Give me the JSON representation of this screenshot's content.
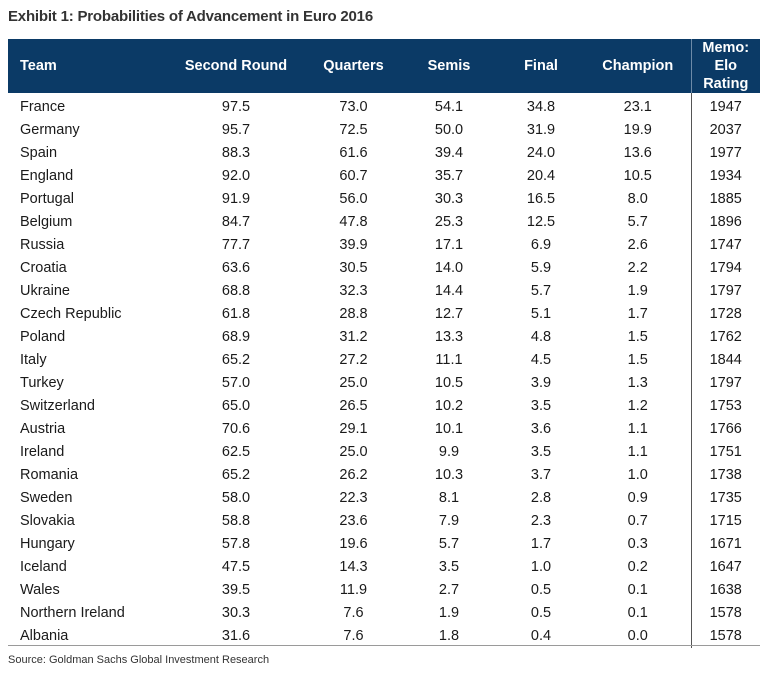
{
  "title": "Exhibit 1: Probabilities of Advancement in Euro 2016",
  "headers": {
    "team": "Team",
    "second_round": "Second Round",
    "quarters": "Quarters",
    "semis": "Semis",
    "final": "Final",
    "champion": "Champion",
    "memo_line1": "Memo: Elo",
    "memo_line2": "Rating"
  },
  "rows": [
    {
      "team": "France",
      "second_round": "97.5",
      "quarters": "73.0",
      "semis": "54.1",
      "final": "34.8",
      "champion": "23.1",
      "elo": "1947"
    },
    {
      "team": "Germany",
      "second_round": "95.7",
      "quarters": "72.5",
      "semis": "50.0",
      "final": "31.9",
      "champion": "19.9",
      "elo": "2037"
    },
    {
      "team": "Spain",
      "second_round": "88.3",
      "quarters": "61.6",
      "semis": "39.4",
      "final": "24.0",
      "champion": "13.6",
      "elo": "1977"
    },
    {
      "team": "England",
      "second_round": "92.0",
      "quarters": "60.7",
      "semis": "35.7",
      "final": "20.4",
      "champion": "10.5",
      "elo": "1934"
    },
    {
      "team": "Portugal",
      "second_round": "91.9",
      "quarters": "56.0",
      "semis": "30.3",
      "final": "16.5",
      "champion": "8.0",
      "elo": "1885"
    },
    {
      "team": "Belgium",
      "second_round": "84.7",
      "quarters": "47.8",
      "semis": "25.3",
      "final": "12.5",
      "champion": "5.7",
      "elo": "1896"
    },
    {
      "team": "Russia",
      "second_round": "77.7",
      "quarters": "39.9",
      "semis": "17.1",
      "final": "6.9",
      "champion": "2.6",
      "elo": "1747"
    },
    {
      "team": "Croatia",
      "second_round": "63.6",
      "quarters": "30.5",
      "semis": "14.0",
      "final": "5.9",
      "champion": "2.2",
      "elo": "1794"
    },
    {
      "team": "Ukraine",
      "second_round": "68.8",
      "quarters": "32.3",
      "semis": "14.4",
      "final": "5.7",
      "champion": "1.9",
      "elo": "1797"
    },
    {
      "team": "Czech Republic",
      "second_round": "61.8",
      "quarters": "28.8",
      "semis": "12.7",
      "final": "5.1",
      "champion": "1.7",
      "elo": "1728"
    },
    {
      "team": "Poland",
      "second_round": "68.9",
      "quarters": "31.2",
      "semis": "13.3",
      "final": "4.8",
      "champion": "1.5",
      "elo": "1762"
    },
    {
      "team": "Italy",
      "second_round": "65.2",
      "quarters": "27.2",
      "semis": "11.1",
      "final": "4.5",
      "champion": "1.5",
      "elo": "1844"
    },
    {
      "team": "Turkey",
      "second_round": "57.0",
      "quarters": "25.0",
      "semis": "10.5",
      "final": "3.9",
      "champion": "1.3",
      "elo": "1797"
    },
    {
      "team": "Switzerland",
      "second_round": "65.0",
      "quarters": "26.5",
      "semis": "10.2",
      "final": "3.5",
      "champion": "1.2",
      "elo": "1753"
    },
    {
      "team": "Austria",
      "second_round": "70.6",
      "quarters": "29.1",
      "semis": "10.1",
      "final": "3.6",
      "champion": "1.1",
      "elo": "1766"
    },
    {
      "team": "Ireland",
      "second_round": "62.5",
      "quarters": "25.0",
      "semis": "9.9",
      "final": "3.5",
      "champion": "1.1",
      "elo": "1751"
    },
    {
      "team": "Romania",
      "second_round": "65.2",
      "quarters": "26.2",
      "semis": "10.3",
      "final": "3.7",
      "champion": "1.0",
      "elo": "1738"
    },
    {
      "team": "Sweden",
      "second_round": "58.0",
      "quarters": "22.3",
      "semis": "8.1",
      "final": "2.8",
      "champion": "0.9",
      "elo": "1735"
    },
    {
      "team": "Slovakia",
      "second_round": "58.8",
      "quarters": "23.6",
      "semis": "7.9",
      "final": "2.3",
      "champion": "0.7",
      "elo": "1715"
    },
    {
      "team": "Hungary",
      "second_round": "57.8",
      "quarters": "19.6",
      "semis": "5.7",
      "final": "1.7",
      "champion": "0.3",
      "elo": "1671"
    },
    {
      "team": "Iceland",
      "second_round": "47.5",
      "quarters": "14.3",
      "semis": "3.5",
      "final": "1.0",
      "champion": "0.2",
      "elo": "1647"
    },
    {
      "team": "Wales",
      "second_round": "39.5",
      "quarters": "11.9",
      "semis": "2.7",
      "final": "0.5",
      "champion": "0.1",
      "elo": "1638"
    },
    {
      "team": "Northern Ireland",
      "second_round": "30.3",
      "quarters": "7.6",
      "semis": "1.9",
      "final": "0.5",
      "champion": "0.1",
      "elo": "1578"
    },
    {
      "team": "Albania",
      "second_round": "31.6",
      "quarters": "7.6",
      "semis": "1.8",
      "final": "0.4",
      "champion": "0.0",
      "elo": "1578"
    }
  ],
  "source": "Source: Goldman Sachs Global Investment Research",
  "colors": {
    "header_bg": "#0b3a66",
    "header_text": "#ffffff"
  }
}
